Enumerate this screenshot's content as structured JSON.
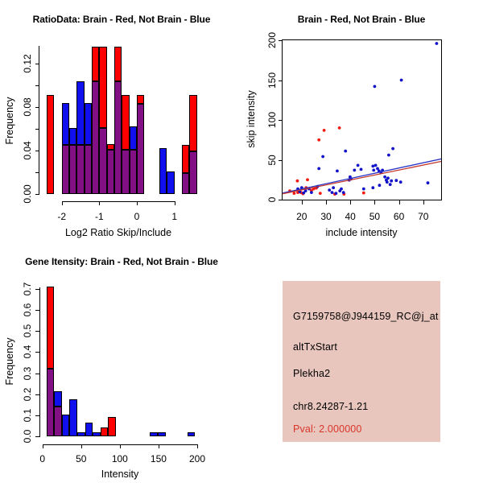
{
  "window": {
    "title": "R Graphics: 2x2 plot layout",
    "background": "#ffffff"
  },
  "colors": {
    "hist_red": "#ff0000",
    "hist_blue": "#1010ee",
    "hist_overlap": "#830f85",
    "scatter_red": "#f51a0f",
    "scatter_blue": "#1212c8",
    "fit_line_blue": "#2633c4",
    "fit_line_red": "#c43326",
    "axis": "#000000",
    "info_bg": "#e8c6bd",
    "pval_red": "#d8352a"
  },
  "chart_data": [
    {
      "id": "ratio_histogram",
      "type": "bar",
      "variant": "overlaid-histogram",
      "title": "RatioData: Brain - Red, Not Brain - Blue",
      "xlabel": "Log2 Ratio Skip/Include",
      "ylabel": "Frequency",
      "xlim": [
        -2.55,
        1.65
      ],
      "ylim": [
        0,
        0.137
      ],
      "grid": false,
      "legend_note": "Brain series = red, Not Brain series = blue, overlap = purple",
      "bin_width": 0.2,
      "x_ticks": [
        -2,
        -1,
        0,
        1
      ],
      "x_tick_labels": [
        "-2",
        "-1",
        "0",
        "1"
      ],
      "y_ticks": [
        0,
        0.02,
        0.04,
        0.06,
        0.08,
        0.1,
        0.12
      ],
      "y_tick_labels": [
        "0.00",
        "",
        "0.04",
        "",
        "0.08",
        "",
        "0.12"
      ],
      "bins": [
        {
          "x": -2.4,
          "brain": 0.091,
          "not_brain": 0
        },
        {
          "x": -2.0,
          "brain": 0.045,
          "not_brain": 0.084
        },
        {
          "x": -1.8,
          "brain": 0.045,
          "not_brain": 0.061
        },
        {
          "x": -1.6,
          "brain": 0.045,
          "not_brain": 0.104
        },
        {
          "x": -1.4,
          "brain": 0.045,
          "not_brain": 0.084
        },
        {
          "x": -1.2,
          "brain": 0.136,
          "not_brain": 0.104
        },
        {
          "x": -1.0,
          "brain": 0.136,
          "not_brain": 0.061
        },
        {
          "x": -0.8,
          "brain": 0.046,
          "not_brain": 0.041
        },
        {
          "x": -0.6,
          "brain": 0.136,
          "not_brain": 0.104
        },
        {
          "x": -0.4,
          "brain": 0.091,
          "not_brain": 0.041
        },
        {
          "x": -0.2,
          "brain": 0.041,
          "not_brain": 0.062
        },
        {
          "x": 0.0,
          "brain": 0.091,
          "not_brain": 0.083
        },
        {
          "x": 0.6,
          "brain": 0,
          "not_brain": 0.042
        },
        {
          "x": 0.8,
          "brain": 0,
          "not_brain": 0.021
        },
        {
          "x": 1.2,
          "brain": 0.045,
          "not_brain": 0.019
        },
        {
          "x": 1.4,
          "brain": 0.091,
          "not_brain": 0.039
        }
      ]
    },
    {
      "id": "intensity_scatter",
      "type": "scatter",
      "title": "Brain - Red, Not Brain - Blue",
      "xlabel": "include intensity",
      "ylabel": "skip intensity",
      "xlim": [
        12,
        77.5
      ],
      "ylim": [
        0,
        201
      ],
      "grid": false,
      "x_ticks": [
        20,
        30,
        40,
        50,
        60,
        70
      ],
      "y_ticks": [
        0,
        50,
        100,
        150,
        200
      ],
      "series": [
        {
          "name": "Brain",
          "color_key": "scatter_red",
          "points": [
            [
              15.1,
              11
            ],
            [
              16.9,
              8
            ],
            [
              18.2,
              23.5
            ],
            [
              18.4,
              9
            ],
            [
              19.7,
              9
            ],
            [
              20.5,
              7.5
            ],
            [
              21.8,
              15
            ],
            [
              22.4,
              25
            ],
            [
              24,
              11.5
            ],
            [
              24.9,
              13.5
            ],
            [
              26,
              14.5
            ],
            [
              27.6,
              8
            ],
            [
              27.1,
              75
            ],
            [
              29.2,
              87
            ],
            [
              33.6,
              7
            ],
            [
              35.5,
              90
            ],
            [
              37.4,
              7
            ],
            [
              45.5,
              8.5
            ]
          ]
        },
        {
          "name": "Not Brain",
          "color_key": "scatter_blue",
          "points": [
            [
              75.5,
              196
            ],
            [
              61,
              150
            ],
            [
              50,
              142
            ],
            [
              57.5,
              64
            ],
            [
              55.8,
              56
            ],
            [
              38,
              61
            ],
            [
              28.7,
              54
            ],
            [
              27.1,
              39
            ],
            [
              34.6,
              36
            ],
            [
              43.1,
              43
            ],
            [
              41.7,
              37
            ],
            [
              44.4,
              38
            ],
            [
              49.3,
              42
            ],
            [
              50.4,
              43
            ],
            [
              49.6,
              37
            ],
            [
              51.2,
              39
            ],
            [
              51.8,
              36
            ],
            [
              52.6,
              34
            ],
            [
              53.2,
              37
            ],
            [
              39.9,
              28.5
            ],
            [
              39.5,
              24.5
            ],
            [
              40.3,
              26
            ],
            [
              54.2,
              28.5
            ],
            [
              54.8,
              24.5
            ],
            [
              55.1,
              22
            ],
            [
              55.5,
              27
            ],
            [
              56.4,
              19
            ],
            [
              56.9,
              23.5
            ],
            [
              58.9,
              24
            ],
            [
              60.7,
              22
            ],
            [
              71.9,
              21
            ],
            [
              52,
              18
            ],
            [
              49.3,
              15
            ],
            [
              45.5,
              13.5
            ],
            [
              33,
              15
            ],
            [
              31.4,
              12
            ],
            [
              32.5,
              9
            ],
            [
              34.1,
              8
            ],
            [
              35.7,
              11
            ],
            [
              36.3,
              13.5
            ],
            [
              37.2,
              9
            ],
            [
              23,
              13.5
            ],
            [
              21.6,
              11
            ],
            [
              20,
              15
            ],
            [
              18.4,
              13.5
            ],
            [
              19.2,
              10
            ],
            [
              20.8,
              8.5
            ],
            [
              24,
              9
            ],
            [
              26.5,
              16.5
            ]
          ]
        }
      ],
      "fit_lines": [
        {
          "name": "not-brain-fit",
          "color_key": "fit_line_blue",
          "from": [
            12.2,
            8.3
          ],
          "to": [
            77.4,
            51.1
          ]
        },
        {
          "name": "brain-fit",
          "color_key": "fit_line_red",
          "from": [
            12.2,
            7.4
          ],
          "to": [
            77.4,
            48.0
          ]
        }
      ]
    },
    {
      "id": "gene_intensity_histogram",
      "type": "bar",
      "variant": "overlaid-histogram",
      "title": "Gene Itensity: Brain - Red, Not Brain - Blue",
      "xlabel": "Intensity",
      "ylabel": "Frequency",
      "xlim": [
        0,
        205
      ],
      "ylim": [
        0,
        0.72
      ],
      "grid": false,
      "legend_note": "Brain series = red, Not Brain series = blue, overlap = purple",
      "bin_width": 10,
      "x_ticks": [
        0,
        50,
        100,
        150,
        200
      ],
      "x_tick_labels": [
        "0",
        "50",
        "100",
        "150",
        "200"
      ],
      "y_ticks": [
        0,
        0.1,
        0.2,
        0.3,
        0.4,
        0.5,
        0.6,
        0.7
      ],
      "y_tick_labels": [
        "0.0",
        "0.1",
        "0.2",
        "0.3",
        "0.4",
        "0.5",
        "0.6",
        "0.7"
      ],
      "bins": [
        {
          "x": 5,
          "brain": 0.71,
          "not_brain": 0.32
        },
        {
          "x": 15,
          "brain": 0.143,
          "not_brain": 0.215
        },
        {
          "x": 25,
          "brain": 0,
          "not_brain": 0.105
        },
        {
          "x": 35,
          "brain": 0,
          "not_brain": 0.175
        },
        {
          "x": 45,
          "brain": 0,
          "not_brain": 0.021
        },
        {
          "x": 55,
          "brain": 0,
          "not_brain": 0.066
        },
        {
          "x": 65,
          "brain": 0,
          "not_brain": 0.021
        },
        {
          "x": 75,
          "brain": 0.044,
          "not_brain": 0
        },
        {
          "x": 85,
          "brain": 0.092,
          "not_brain": 0
        },
        {
          "x": 139,
          "brain": 0,
          "not_brain": 0.021
        },
        {
          "x": 149,
          "brain": 0,
          "not_brain": 0.021
        },
        {
          "x": 187,
          "brain": 0,
          "not_brain": 0.021
        }
      ]
    }
  ],
  "panels": {
    "info_panel": {
      "probeset_id": "G7159758@J944159_RC@j_at",
      "event_type": "altTxStart",
      "gene_symbol": "Plekha2",
      "locus": "chr8.24287-1.21",
      "pval_label": "Pval: 2.000000"
    }
  }
}
